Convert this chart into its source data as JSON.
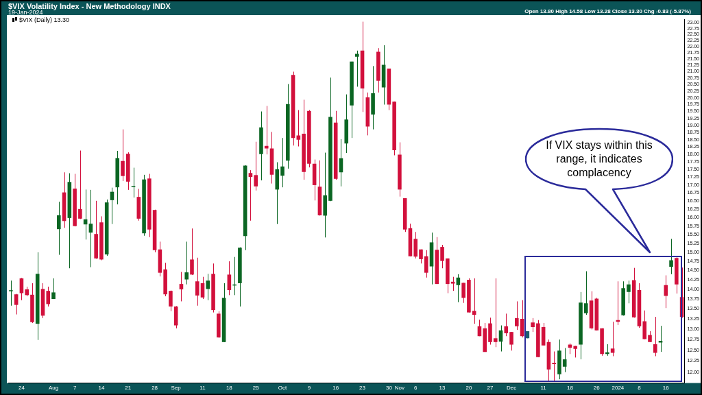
{
  "chart_data": {
    "type": "candlestick",
    "title": "$VIX Volatility Index - New Methodology INDX",
    "subtitle": "19-Jan-2024",
    "annotations": [
      "$VIX (Daily) 13.30",
      "Open 13.80 High 14.58 Low 13.28 Close 13.30 Chg -0.83 (-5.87%)",
      "If VIX stays within this range, it indicates complacency"
    ],
    "categories": [
      null,
      null,
      "24",
      null,
      null,
      null,
      null,
      null,
      "Aug",
      null,
      null,
      null,
      "7",
      null,
      null,
      null,
      null,
      "14",
      null,
      null,
      null,
      null,
      "21",
      null,
      null,
      null,
      null,
      "28",
      null,
      null,
      null,
      "Sep",
      null,
      null,
      null,
      null,
      "11",
      null,
      null,
      null,
      null,
      "18",
      null,
      null,
      null,
      null,
      "25",
      null,
      null,
      null,
      null,
      "Oct",
      null,
      null,
      null,
      null,
      "9",
      null,
      null,
      null,
      null,
      "16",
      null,
      null,
      null,
      null,
      "23",
      null,
      null,
      null,
      null,
      "30",
      null,
      "Nov",
      null,
      null,
      "6",
      null,
      null,
      null,
      null,
      "13",
      null,
      null,
      null,
      null,
      "20",
      null,
      null,
      null,
      "27",
      null,
      null,
      null,
      "Dec",
      null,
      null,
      null,
      null,
      null,
      "11",
      null,
      null,
      null,
      null,
      "18",
      null,
      null,
      null,
      null,
      "26",
      null,
      null,
      null,
      "2024",
      null,
      null,
      null,
      "8",
      null,
      null,
      null,
      null,
      "16",
      null,
      null,
      null
    ],
    "ohlc": [
      [
        13.95,
        14.23,
        13.58,
        13.97
      ],
      [
        13.87,
        13.88,
        13.36,
        13.6
      ],
      [
        14.29,
        14.3,
        13.72,
        13.9
      ],
      [
        14.0,
        14.07,
        13.82,
        13.85
      ],
      [
        13.86,
        14.16,
        13.15,
        13.17
      ],
      [
        13.13,
        15.0,
        12.74,
        14.41
      ],
      [
        14.01,
        14.16,
        13.27,
        13.33
      ],
      [
        13.96,
        14.07,
        13.56,
        13.62
      ],
      [
        13.75,
        14.29,
        13.75,
        13.92
      ],
      [
        15.66,
        16.48,
        14.93,
        16.07
      ],
      [
        16.77,
        17.41,
        15.7,
        15.9
      ],
      [
        15.99,
        17.38,
        14.56,
        17.1
      ],
      [
        16.89,
        17.36,
        15.74,
        15.75
      ],
      [
        16.26,
        18.13,
        15.96,
        15.97
      ],
      [
        15.8,
        16.86,
        15.36,
        15.95
      ],
      [
        15.56,
        16.85,
        14.59,
        15.82
      ],
      [
        15.52,
        16.51,
        14.82,
        14.83
      ],
      [
        15.86,
        16.04,
        14.78,
        14.8
      ],
      [
        14.94,
        16.55,
        14.9,
        16.46
      ],
      [
        16.53,
        16.92,
        15.81,
        16.79
      ],
      [
        16.93,
        18.12,
        16.4,
        17.88
      ],
      [
        17.78,
        18.86,
        17.13,
        17.29
      ],
      [
        18.02,
        18.07,
        16.85,
        17.11
      ],
      [
        16.94,
        17.56,
        16.61,
        16.96
      ],
      [
        16.63,
        16.88,
        15.91,
        15.97
      ],
      [
        15.54,
        17.33,
        15.47,
        17.18
      ],
      [
        17.21,
        17.36,
        15.43,
        15.65
      ],
      [
        16.23,
        16.24,
        15.0,
        15.06
      ],
      [
        15.08,
        15.3,
        14.34,
        14.44
      ],
      [
        14.53,
        14.71,
        13.82,
        13.87
      ],
      [
        13.96,
        13.97,
        13.44,
        13.56
      ],
      [
        13.56,
        13.57,
        13.02,
        13.09
      ],
      [
        14.14,
        14.46,
        13.69,
        14.0
      ],
      [
        14.26,
        15.3,
        14.13,
        14.45
      ],
      [
        14.8,
        15.68,
        14.38,
        14.39
      ],
      [
        14.21,
        14.85,
        13.58,
        13.84
      ],
      [
        14.16,
        14.33,
        13.75,
        13.79
      ],
      [
        14.01,
        14.41,
        13.72,
        14.23
      ],
      [
        14.41,
        14.69,
        13.41,
        13.47
      ],
      [
        13.38,
        13.44,
        12.79,
        12.8
      ],
      [
        12.69,
        14.16,
        12.69,
        13.78
      ],
      [
        14.39,
        14.75,
        13.85,
        13.98
      ],
      [
        14.1,
        14.87,
        13.85,
        14.11
      ],
      [
        14.16,
        15.14,
        13.56,
        15.13
      ],
      [
        15.46,
        17.64,
        15.06,
        17.63
      ],
      [
        17.39,
        17.48,
        15.91,
        17.26
      ],
      [
        17.32,
        18.43,
        16.83,
        16.96
      ],
      [
        18.01,
        19.5,
        17.15,
        18.93
      ],
      [
        18.29,
        19.7,
        18.0,
        18.2
      ],
      [
        18.2,
        18.77,
        17.05,
        17.33
      ],
      [
        16.86,
        17.74,
        15.81,
        17.51
      ],
      [
        17.3,
        18.56,
        16.93,
        17.6
      ],
      [
        17.79,
        20.52,
        17.53,
        19.77
      ],
      [
        20.87,
        21.0,
        18.3,
        18.56
      ],
      [
        18.65,
        19.55,
        18.27,
        18.5
      ],
      [
        18.71,
        19.93,
        17.17,
        17.42
      ],
      [
        19.52,
        19.55,
        17.57,
        17.69
      ],
      [
        17.69,
        17.83,
        16.52,
        17.0
      ],
      [
        16.95,
        17.8,
        16.06,
        16.07
      ],
      [
        16.06,
        18.06,
        15.42,
        16.68
      ],
      [
        16.51,
        20.77,
        16.5,
        19.3
      ],
      [
        19.1,
        19.52,
        17.17,
        17.2
      ],
      [
        17.41,
        18.52,
        16.96,
        17.87
      ],
      [
        18.37,
        20.13,
        18.05,
        19.21
      ],
      [
        19.72,
        21.4,
        18.56,
        21.4
      ],
      [
        21.59,
        21.84,
        20.42,
        21.71
      ],
      [
        21.84,
        23.05,
        19.48,
        20.35
      ],
      [
        20.02,
        20.2,
        18.65,
        18.96
      ],
      [
        19.39,
        21.22,
        18.86,
        20.17
      ],
      [
        21.79,
        21.94,
        20.2,
        20.65
      ],
      [
        20.39,
        22.06,
        19.75,
        21.27
      ],
      [
        21.12,
        21.12,
        19.55,
        19.75
      ],
      [
        19.86,
        19.86,
        17.97,
        18.14
      ],
      [
        17.99,
        18.41,
        16.64,
        16.86
      ],
      [
        16.59,
        16.59,
        15.58,
        15.65
      ],
      [
        15.69,
        15.82,
        14.89,
        14.89
      ],
      [
        15.38,
        15.58,
        14.83,
        14.88
      ],
      [
        15.08,
        15.08,
        14.69,
        14.81
      ],
      [
        14.89,
        15.06,
        14.31,
        14.44
      ],
      [
        14.61,
        15.56,
        14.13,
        15.28
      ],
      [
        15.07,
        15.43,
        14.14,
        14.14
      ],
      [
        15.15,
        15.21,
        14.56,
        14.76
      ],
      [
        14.83,
        14.83,
        13.9,
        14.14
      ],
      [
        14.2,
        14.33,
        13.96,
        14.15
      ],
      [
        14.11,
        14.4,
        13.67,
        14.31
      ],
      [
        14.17,
        14.17,
        13.65,
        13.78
      ],
      [
        14.25,
        14.29,
        13.41,
        13.41
      ],
      [
        13.45,
        14.29,
        13.13,
        13.35
      ],
      [
        13.07,
        13.23,
        12.83,
        12.83
      ],
      [
        13.02,
        13.15,
        12.46,
        12.46
      ],
      [
        13.14,
        13.28,
        12.63,
        12.69
      ],
      [
        12.78,
        14.29,
        12.57,
        12.69
      ],
      [
        12.7,
        13.09,
        12.47,
        12.97
      ],
      [
        13.07,
        13.38,
        12.83,
        12.9
      ],
      [
        12.93,
        12.93,
        12.49,
        12.63
      ],
      [
        13.27,
        13.69,
        12.98,
        13.07
      ],
      [
        13.25,
        13.72,
        12.8,
        12.83
      ],
      [
        12.78,
        12.95,
        12.78,
        12.95
      ],
      [
        13.16,
        13.27,
        12.93,
        13.05
      ],
      [
        13.14,
        13.22,
        12.34,
        12.34
      ],
      [
        13.05,
        13.15,
        12.61,
        12.61
      ],
      [
        12.69,
        12.75,
        11.79,
        12.06
      ],
      [
        12.21,
        12.47,
        11.8,
        12.18
      ],
      [
        11.95,
        12.75,
        11.84,
        12.49
      ],
      [
        12.12,
        12.55,
        12.0,
        12.29
      ],
      [
        12.63,
        12.66,
        12.41,
        12.56
      ],
      [
        12.6,
        12.6,
        12.33,
        12.53
      ],
      [
        12.63,
        13.93,
        12.29,
        13.66
      ],
      [
        13.39,
        14.48,
        13.35,
        13.64
      ],
      [
        13.71,
        13.95,
        12.99,
        13.02
      ],
      [
        13.76,
        13.78,
        12.97,
        12.97
      ],
      [
        13.02,
        13.02,
        12.37,
        12.41
      ],
      [
        12.41,
        12.64,
        12.37,
        12.45
      ],
      [
        12.54,
        13.18,
        12.36,
        12.44
      ],
      [
        13.22,
        14.21,
        13.1,
        13.18
      ],
      [
        13.34,
        14.21,
        13.33,
        14.03
      ],
      [
        13.93,
        14.23,
        13.64,
        14.13
      ],
      [
        14.24,
        14.57,
        13.28,
        13.29
      ],
      [
        13.98,
        14.16,
        13.03,
        13.07
      ],
      [
        13.19,
        13.46,
        12.76,
        12.76
      ],
      [
        12.86,
        12.95,
        12.69,
        12.69
      ],
      [
        12.64,
        13.3,
        12.36,
        12.44
      ],
      [
        12.68,
        13.08,
        12.46,
        12.72
      ],
      [
        14.11,
        14.37,
        13.52,
        13.83
      ],
      [
        14.6,
        15.38,
        14.4,
        14.78
      ],
      [
        14.84,
        14.86,
        13.89,
        14.13
      ],
      [
        13.8,
        14.58,
        13.28,
        13.3
      ]
    ],
    "colors": [
      "#0b6623",
      "#d2103c",
      "#d2103c",
      "#d2103c",
      "#d2103c",
      "#0b6623",
      "#d2103c",
      "#d2103c",
      "#0b6623",
      "#0b6623",
      "#d2103c",
      "#0b6623",
      "#d2103c",
      "#d2103c",
      "#0b6623",
      "#0b6623",
      "#d2103c",
      "#d2103c",
      "#0b6623",
      "#0b6623",
      "#0b6623",
      "#d2103c",
      "#d2103c",
      "#0b6623",
      "#d2103c",
      "#0b6623",
      "#d2103c",
      "#d2103c",
      "#d2103c",
      "#d2103c",
      "#d2103c",
      "#d2103c",
      "#d2103c",
      "#0b6623",
      "#d2103c",
      "#d2103c",
      "#d2103c",
      "#0b6623",
      "#d2103c",
      "#d2103c",
      "#0b6623",
      "#d2103c",
      "#0b6623",
      "#0b6623",
      "#0b6623",
      "#d2103c",
      "#d2103c",
      "#0b6623",
      "#d2103c",
      "#d2103c",
      "#0b6623",
      "#0b6623",
      "#0b6623",
      "#d2103c",
      "#d2103c",
      "#d2103c",
      "#d2103c",
      "#d2103c",
      "#d2103c",
      "#0b6623",
      "#0b6623",
      "#d2103c",
      "#0b6623",
      "#0b6623",
      "#0b6623",
      "#0b6623",
      "#d2103c",
      "#d2103c",
      "#0b6623",
      "#d2103c",
      "#0b6623",
      "#d2103c",
      "#d2103c",
      "#d2103c",
      "#d2103c",
      "#d2103c",
      "#d2103c",
      "#d2103c",
      "#d2103c",
      "#0b6623",
      "#d2103c",
      "#d2103c",
      "#d2103c",
      "#d2103c",
      "#0b6623",
      "#d2103c",
      "#d2103c",
      "#d2103c",
      "#d2103c",
      "#d2103c",
      "#d2103c",
      "#d2103c",
      "#0b6623",
      "#d2103c",
      "#d2103c",
      "#d2103c",
      "#d2103c",
      "#1b5e6e",
      "#d2103c",
      "#d2103c",
      "#d2103c",
      "#d2103c",
      "#d2103c",
      "#0b6623",
      "#0b6623",
      "#d2103c",
      "#d2103c",
      "#0b6623",
      "#0b6623",
      "#d2103c",
      "#d2103c",
      "#d2103c",
      "#0b6623",
      "#d2103c",
      "#d2103c",
      "#0b6623",
      "#0b6623",
      "#d2103c",
      "#d2103c",
      "#d2103c",
      "#d2103c",
      "#d2103c",
      "#0b6623",
      "#d2103c",
      "#0b6623",
      "#d2103c",
      "#d2103c"
    ],
    "log": true,
    "ylim": [
      11.76,
      23.15
    ],
    "yticks": [
      {
        "value": 12,
        "label": "12.00"
      },
      {
        "value": 12.25,
        "label": "12.25"
      },
      {
        "value": 12.5,
        "label": "12.50"
      },
      {
        "value": 12.75,
        "label": "12.75"
      },
      {
        "value": 13,
        "label": "13.00"
      },
      {
        "value": 13.25,
        "label": "13.25"
      },
      {
        "value": 13.5,
        "label": "13.50"
      },
      {
        "value": 13.75,
        "label": "13.75"
      },
      {
        "value": 14,
        "label": "14.00"
      },
      {
        "value": 14.25,
        "label": "14.25"
      },
      {
        "value": 14.5,
        "label": "14.50"
      },
      {
        "value": 14.75,
        "label": "14.75"
      },
      {
        "value": 15,
        "label": "15.00"
      },
      {
        "value": 15.25,
        "label": "15.25"
      },
      {
        "value": 15.5,
        "label": "15.50"
      },
      {
        "value": 15.75,
        "label": "15.75"
      },
      {
        "value": 16,
        "label": "16.00"
      },
      {
        "value": 16.25,
        "label": "16.25"
      },
      {
        "value": 16.5,
        "label": "16.50"
      },
      {
        "value": 16.75,
        "label": "16.75"
      },
      {
        "value": 17,
        "label": "17.00"
      },
      {
        "value": 17.25,
        "label": "17.25"
      },
      {
        "value": 17.5,
        "label": "17.50"
      },
      {
        "value": 17.75,
        "label": "17.75"
      },
      {
        "value": 18,
        "label": "18.00"
      },
      {
        "value": 18.25,
        "label": "18.25"
      },
      {
        "value": 18.5,
        "label": "18.50"
      },
      {
        "value": 18.75,
        "label": "18.75"
      },
      {
        "value": 19,
        "label": "19.00"
      },
      {
        "value": 19.25,
        "label": "19.25"
      },
      {
        "value": 19.5,
        "label": "19.50"
      },
      {
        "value": 19.75,
        "label": "19.75"
      },
      {
        "value": 20,
        "label": "20.00"
      },
      {
        "value": 20.25,
        "label": "20.25"
      },
      {
        "value": 20.5,
        "label": "20.50"
      },
      {
        "value": 20.75,
        "label": "20.75"
      },
      {
        "value": 21,
        "label": "21.00"
      },
      {
        "value": 21.25,
        "label": "21.25"
      },
      {
        "value": 21.5,
        "label": "21.50"
      },
      {
        "value": 21.75,
        "label": "21.75"
      },
      {
        "value": 22,
        "label": "22.00"
      },
      {
        "value": 22.25,
        "label": "22.25"
      },
      {
        "value": 22.5,
        "label": "22.50"
      },
      {
        "value": 22.75,
        "label": "22.75"
      },
      {
        "value": 23,
        "label": "23.00"
      }
    ],
    "grid": false,
    "legend": false
  }
}
